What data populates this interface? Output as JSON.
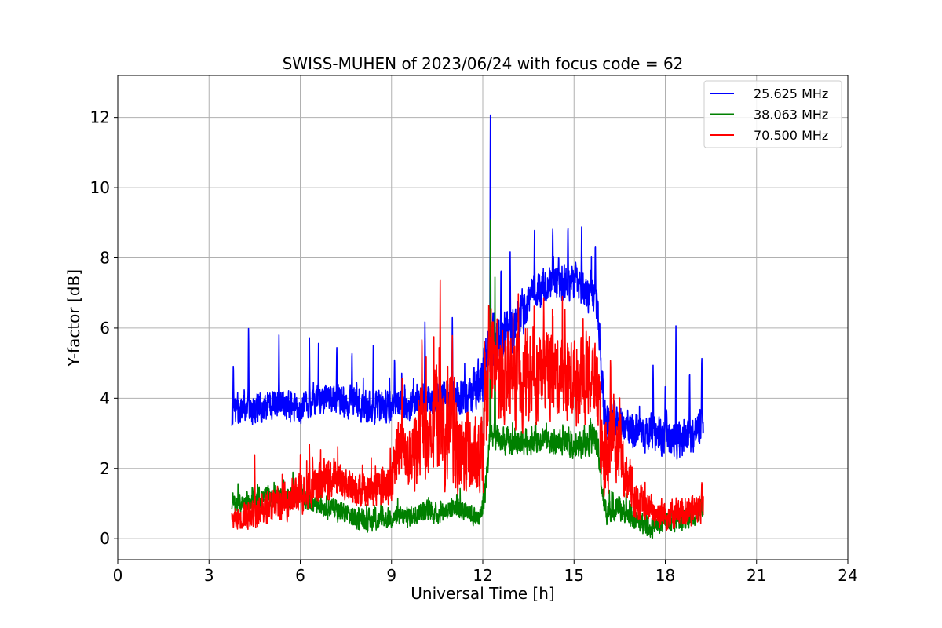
{
  "chart_data": {
    "type": "line",
    "title": "SWISS-MUHEN of 2023/06/24 with focus code = 62",
    "xlabel": "Universal Time [h]",
    "ylabel": "Y-factor [dB]",
    "xlim": [
      0,
      24
    ],
    "ylim": [
      -0.6,
      13.2
    ],
    "xticks": [
      0,
      3,
      6,
      9,
      12,
      15,
      18,
      21,
      24
    ],
    "yticks": [
      0,
      2,
      4,
      6,
      8,
      10,
      12
    ],
    "grid": true,
    "legend_position": "top-right",
    "series": [
      {
        "name": "25.625 MHz",
        "color": "#0000ff",
        "x": [
          3.75,
          4.0,
          4.5,
          5.0,
          5.5,
          6.0,
          6.5,
          7.0,
          7.5,
          8.0,
          8.5,
          9.0,
          9.5,
          10.0,
          10.5,
          11.0,
          11.5,
          12.0,
          12.25,
          12.5,
          13.0,
          13.5,
          14.0,
          14.5,
          15.0,
          15.5,
          15.75,
          16.0,
          16.5,
          17.0,
          17.5,
          18.0,
          18.5,
          19.0,
          19.25
        ],
        "center": [
          3.6,
          3.7,
          3.7,
          3.8,
          3.8,
          3.7,
          3.9,
          4.0,
          3.9,
          3.8,
          3.7,
          3.8,
          3.8,
          3.9,
          4.0,
          4.0,
          4.1,
          4.5,
          5.8,
          5.6,
          5.9,
          6.8,
          7.2,
          7.3,
          7.3,
          7.0,
          6.7,
          3.4,
          3.3,
          3.1,
          3.0,
          2.9,
          2.8,
          3.0,
          3.4
        ],
        "spread": [
          0.7,
          0.6,
          0.6,
          0.6,
          0.6,
          0.6,
          0.6,
          0.6,
          0.6,
          0.6,
          0.6,
          0.6,
          0.6,
          0.6,
          0.6,
          0.7,
          0.8,
          1.0,
          1.2,
          1.0,
          1.0,
          0.8,
          0.7,
          0.7,
          0.7,
          0.7,
          0.8,
          0.8,
          0.7,
          0.7,
          0.7,
          0.7,
          0.7,
          0.7,
          0.7
        ],
        "peaks": [
          [
            3.8,
            5.1
          ],
          [
            4.3,
            6.2
          ],
          [
            5.3,
            5.8
          ],
          [
            6.3,
            5.9
          ],
          [
            6.6,
            5.6
          ],
          [
            7.2,
            5.6
          ],
          [
            7.7,
            5.5
          ],
          [
            8.4,
            5.5
          ],
          [
            9.1,
            5.3
          ],
          [
            10.1,
            6.3
          ],
          [
            11.0,
            6.4
          ],
          [
            12.25,
            12.5
          ],
          [
            12.6,
            8.0
          ],
          [
            12.9,
            8.3
          ],
          [
            13.7,
            8.8
          ],
          [
            14.3,
            9.0
          ],
          [
            14.8,
            9.1
          ],
          [
            15.25,
            8.9
          ],
          [
            15.7,
            8.6
          ],
          [
            17.6,
            5.1
          ],
          [
            18.0,
            4.5
          ],
          [
            18.35,
            6.1
          ],
          [
            18.8,
            5.0
          ],
          [
            19.2,
            5.4
          ]
        ]
      },
      {
        "name": "38.063 MHz",
        "color": "#008000",
        "x": [
          3.75,
          4.0,
          4.5,
          5.0,
          5.5,
          6.0,
          6.5,
          7.0,
          7.5,
          8.0,
          8.5,
          9.0,
          9.5,
          10.0,
          10.5,
          11.0,
          11.5,
          11.9,
          12.1,
          12.25,
          12.5,
          13.0,
          13.5,
          14.0,
          14.5,
          15.0,
          15.5,
          15.75,
          16.0,
          16.5,
          17.0,
          17.5,
          18.0,
          18.5,
          19.0,
          19.25
        ],
        "center": [
          1.0,
          1.0,
          1.1,
          1.2,
          1.2,
          1.2,
          1.0,
          0.9,
          0.7,
          0.5,
          0.5,
          0.6,
          0.6,
          0.8,
          0.7,
          0.9,
          0.8,
          0.5,
          1.5,
          3.0,
          2.8,
          2.7,
          2.8,
          2.9,
          2.7,
          2.6,
          2.8,
          2.8,
          0.8,
          0.9,
          0.5,
          0.3,
          0.5,
          0.5,
          0.7,
          0.9
        ],
        "spread": [
          0.4,
          0.4,
          0.4,
          0.4,
          0.4,
          0.4,
          0.4,
          0.4,
          0.4,
          0.4,
          0.4,
          0.4,
          0.4,
          0.4,
          0.4,
          0.4,
          0.4,
          0.4,
          0.6,
          0.5,
          0.5,
          0.5,
          0.5,
          0.5,
          0.5,
          0.5,
          0.5,
          0.5,
          0.5,
          0.5,
          0.4,
          0.4,
          0.4,
          0.4,
          0.4,
          0.4
        ],
        "peaks": [
          [
            12.25,
            9.5
          ],
          [
            12.4,
            7.5
          ],
          [
            15.6,
            3.3
          ],
          [
            19.2,
            1.5
          ]
        ]
      },
      {
        "name": "70.500 MHz",
        "color": "#ff0000",
        "x": [
          3.75,
          4.0,
          4.5,
          5.0,
          5.5,
          6.0,
          6.5,
          7.0,
          7.5,
          8.0,
          8.5,
          9.0,
          9.3,
          9.5,
          9.75,
          10.0,
          10.25,
          10.5,
          10.75,
          11.0,
          11.25,
          11.5,
          11.75,
          12.0,
          12.25,
          12.5,
          13.0,
          13.5,
          14.0,
          14.5,
          15.0,
          15.5,
          15.75,
          16.0,
          16.25,
          16.5,
          17.0,
          17.5,
          18.0,
          18.5,
          19.0,
          19.25
        ],
        "center": [
          0.5,
          0.6,
          0.8,
          0.9,
          1.1,
          1.3,
          1.6,
          1.7,
          1.6,
          1.4,
          1.4,
          1.6,
          3.0,
          2.2,
          2.4,
          3.4,
          2.4,
          3.8,
          2.6,
          3.2,
          2.2,
          2.6,
          1.9,
          2.4,
          5.0,
          4.7,
          4.5,
          4.6,
          4.8,
          4.6,
          4.5,
          4.5,
          4.5,
          1.5,
          3.2,
          2.2,
          1.2,
          0.8,
          0.7,
          0.8,
          0.8,
          0.9
        ],
        "spread": [
          0.4,
          0.5,
          0.6,
          0.6,
          0.7,
          0.8,
          0.8,
          0.8,
          0.7,
          0.7,
          0.7,
          0.8,
          1.4,
          1.3,
          1.5,
          2.0,
          1.6,
          2.2,
          1.8,
          2.0,
          1.6,
          1.7,
          1.4,
          1.6,
          2.2,
          1.8,
          1.7,
          1.7,
          1.7,
          1.6,
          1.6,
          1.6,
          1.6,
          1.2,
          1.6,
          1.3,
          0.8,
          0.6,
          0.6,
          0.6,
          0.6,
          0.6
        ],
        "peaks": [
          [
            4.5,
            2.5
          ],
          [
            6.3,
            2.8
          ],
          [
            9.35,
            4.8
          ],
          [
            10.0,
            6.0
          ],
          [
            10.6,
            7.4
          ],
          [
            11.0,
            5.9
          ],
          [
            12.2,
            7.0
          ],
          [
            14.7,
            6.7
          ],
          [
            15.4,
            6.0
          ],
          [
            16.2,
            5.4
          ],
          [
            16.5,
            4.2
          ],
          [
            19.2,
            1.7
          ]
        ]
      }
    ]
  }
}
